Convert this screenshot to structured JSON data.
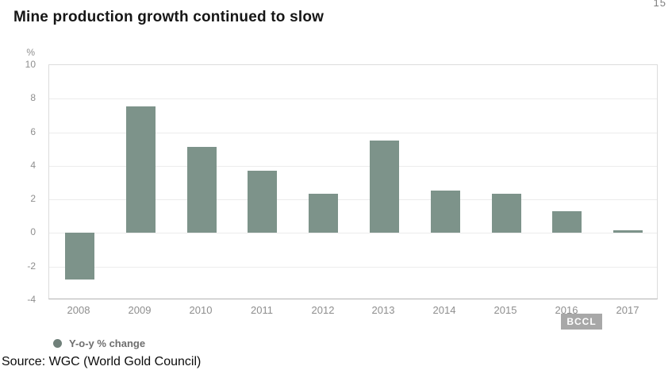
{
  "page": {
    "corner_mark": "15",
    "source": "Source: WGC (World Gold Council)"
  },
  "watermark": {
    "label": "BCCL"
  },
  "chart_data": {
    "type": "bar",
    "title": "Mine production growth continued to slow",
    "unit_label": "%",
    "legend": "Y-o-y % change",
    "legend_position": "bottom-left",
    "categories": [
      "2008",
      "2009",
      "2010",
      "2011",
      "2012",
      "2013",
      "2014",
      "2015",
      "2016",
      "2017"
    ],
    "values": [
      -2.8,
      7.5,
      5.1,
      3.7,
      2.3,
      5.5,
      2.5,
      2.3,
      1.3,
      0.15
    ],
    "xlabel": "",
    "ylabel": "%",
    "ylim": [
      -4,
      10
    ],
    "yticks": [
      10,
      8,
      6,
      4,
      2,
      0,
      -2,
      -4
    ],
    "grid": true,
    "bar_color": "#7d938a"
  }
}
